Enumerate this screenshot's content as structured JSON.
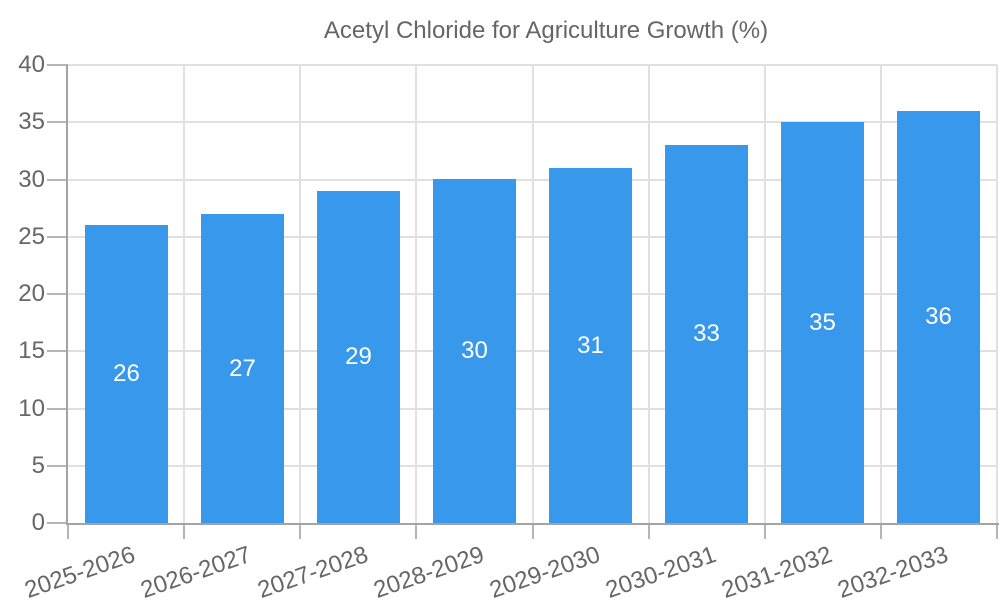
{
  "chart_data": {
    "type": "bar",
    "title": "Acetyl Chloride for Agriculture Growth (%)",
    "legend": {
      "position": "top",
      "label": "Acetyl Chloride for Agriculture Growth (%)"
    },
    "categories": [
      "2025-2026",
      "2026-2027",
      "2027-2028",
      "2028-2029",
      "2029-2030",
      "2030-2031",
      "2031-2032",
      "2032-2033"
    ],
    "series": [
      {
        "name": "Acetyl Chloride for Agriculture Growth (%)",
        "values": [
          26,
          27,
          29,
          30,
          31,
          33,
          35,
          36
        ]
      }
    ],
    "xlabel": "",
    "ylabel": "",
    "ylim": [
      0,
      40
    ],
    "yticks": [
      0,
      5,
      10,
      15,
      20,
      25,
      30,
      35,
      40
    ],
    "grid": true,
    "colors": {
      "bar": "#3899ec",
      "gridline": "#e0e0e0",
      "tick": "#b5b5b5",
      "axis": "#a3a3a3",
      "text": "#666666",
      "value_text": "#ffffff"
    }
  }
}
